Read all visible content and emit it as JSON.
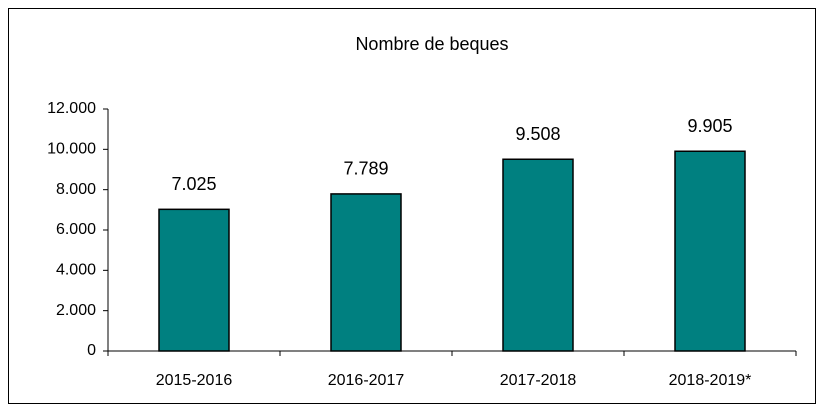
{
  "chart_data": {
    "type": "bar",
    "title": "Nombre de beques",
    "categories": [
      "2015-2016",
      "2016-2017",
      "2017-2018",
      "2018-2019*"
    ],
    "values": [
      7025,
      7789,
      9508,
      9905
    ],
    "value_labels": [
      "7.025",
      "7.789",
      "9.508",
      "9.905"
    ],
    "color": "#008080",
    "ylim": [
      0,
      12000
    ],
    "yticks": [
      0,
      {
        "value": 2000,
        "label": "2.000"
      },
      {
        "value": 4000,
        "label": "4.000"
      },
      {
        "value": 6000,
        "label": "6.000"
      },
      {
        "value": 8000,
        "label": "8.000"
      },
      {
        "value": 10000,
        "label": "10.000"
      },
      {
        "value": 12000,
        "label": "12.000"
      }
    ],
    "grid": false
  }
}
